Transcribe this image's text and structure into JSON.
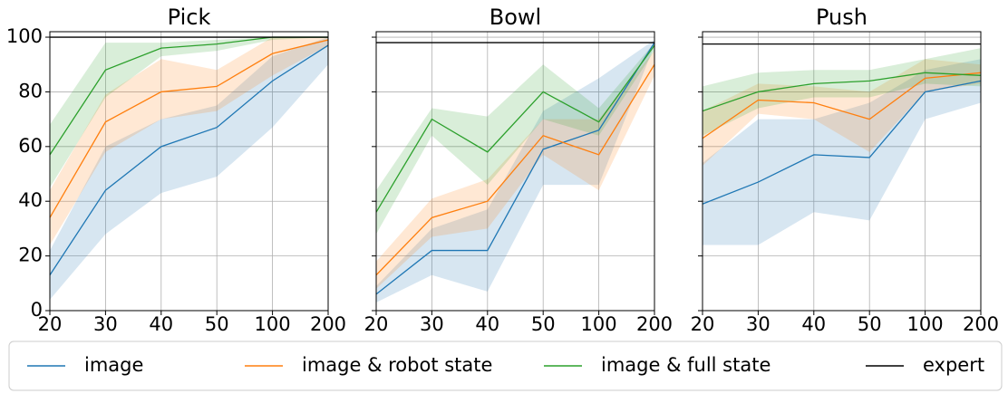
{
  "chart_data": [
    {
      "type": "line",
      "title": "Pick",
      "categories": [
        "20",
        "30",
        "40",
        "50",
        "100",
        "200"
      ],
      "ylim": [
        0,
        102
      ],
      "yticks": [
        0,
        20,
        40,
        60,
        80,
        100
      ],
      "grid": true,
      "series": [
        {
          "name": "image",
          "color": "#1f77b4",
          "values": [
            13,
            44,
            60,
            67,
            84,
            97
          ],
          "lower": [
            4,
            28,
            43,
            49,
            67,
            90
          ],
          "upper": [
            22,
            60,
            70,
            75,
            93,
            100
          ]
        },
        {
          "name": "image & robot state",
          "color": "#ff7f0e",
          "values": [
            34,
            69,
            80,
            82,
            94,
            99
          ],
          "lower": [
            24,
            58,
            70,
            73,
            86,
            97
          ],
          "upper": [
            44,
            79,
            92,
            88,
            100,
            100
          ]
        },
        {
          "name": "image & full state",
          "color": "#2ca02c",
          "values": [
            57,
            88,
            96,
            97.5,
            100,
            100
          ],
          "lower": [
            45,
            78,
            93,
            95,
            99,
            100
          ],
          "upper": [
            68,
            98,
            98,
            99,
            100,
            100
          ]
        },
        {
          "name": "expert",
          "color": "#000000",
          "values": [
            100,
            100,
            100,
            100,
            100,
            100
          ]
        }
      ]
    },
    {
      "type": "line",
      "title": "Bowl",
      "categories": [
        "20",
        "30",
        "40",
        "50",
        "100",
        "200"
      ],
      "ylim": [
        0,
        102
      ],
      "yticks": [
        0,
        20,
        40,
        60,
        80,
        100
      ],
      "grid": true,
      "series": [
        {
          "name": "image",
          "color": "#1f77b4",
          "values": [
            6,
            22,
            22,
            59,
            66,
            98
          ],
          "lower": [
            3,
            13,
            7,
            46,
            46,
            97
          ],
          "upper": [
            9,
            30,
            37,
            73,
            85,
            99
          ]
        },
        {
          "name": "image & robot state",
          "color": "#ff7f0e",
          "values": [
            13,
            34,
            40,
            64,
            57,
            90
          ],
          "lower": [
            8,
            27,
            30,
            57,
            44,
            86
          ],
          "upper": [
            18,
            41,
            48,
            70,
            70,
            95
          ]
        },
        {
          "name": "image & full state",
          "color": "#2ca02c",
          "values": [
            36,
            70,
            58,
            80,
            69,
            97
          ],
          "lower": [
            28,
            64,
            46,
            70,
            64,
            95
          ],
          "upper": [
            44,
            74,
            71,
            90,
            74,
            98
          ]
        },
        {
          "name": "expert",
          "color": "#000000",
          "values": [
            98,
            98,
            98,
            98,
            98,
            98
          ]
        }
      ]
    },
    {
      "type": "line",
      "title": "Push",
      "categories": [
        "20",
        "30",
        "40",
        "50",
        "100",
        "200"
      ],
      "ylim": [
        0,
        102
      ],
      "yticks": [
        0,
        20,
        40,
        60,
        80,
        100
      ],
      "grid": true,
      "series": [
        {
          "name": "image",
          "color": "#1f77b4",
          "values": [
            39,
            47,
            57,
            56,
            80,
            84
          ],
          "lower": [
            24,
            24,
            36,
            33,
            70,
            76
          ],
          "upper": [
            54,
            70,
            70,
            76,
            88,
            92
          ]
        },
        {
          "name": "image & robot state",
          "color": "#ff7f0e",
          "values": [
            63,
            77,
            76,
            70,
            85,
            87
          ],
          "lower": [
            53,
            72,
            70,
            58,
            80,
            83
          ],
          "upper": [
            73,
            83,
            82,
            80,
            92,
            90
          ]
        },
        {
          "name": "image & full state",
          "color": "#2ca02c",
          "values": [
            73,
            80,
            83,
            84,
            87,
            86
          ],
          "lower": [
            64,
            74,
            78,
            78,
            83,
            82
          ],
          "upper": [
            82,
            87,
            88,
            88,
            92,
            96
          ]
        },
        {
          "name": "expert",
          "color": "#000000",
          "values": [
            97.5,
            97.5,
            97.5,
            97.5,
            97.5,
            97.5
          ]
        }
      ]
    }
  ]
}
